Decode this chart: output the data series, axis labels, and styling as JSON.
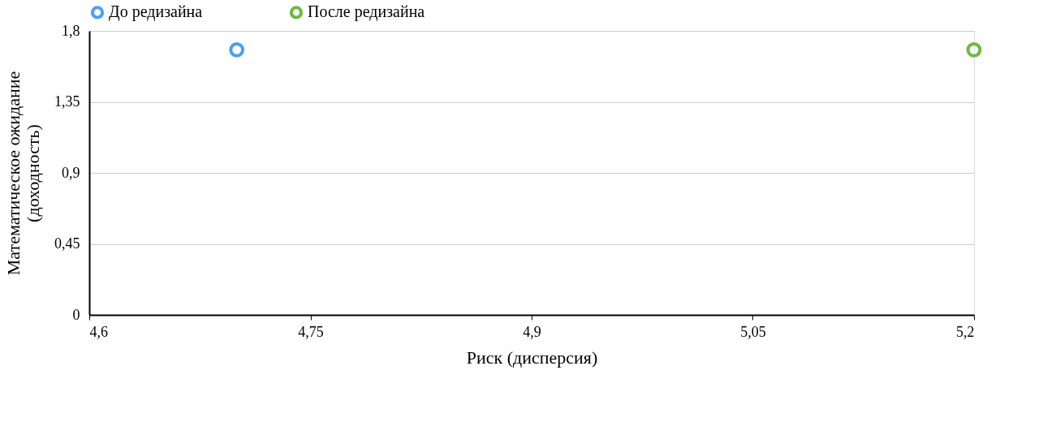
{
  "chart_data": {
    "type": "scatter",
    "xlabel": "Риск (дисперсия)",
    "ylabel": "Математическое ожидание (доходность)",
    "series": [
      {
        "name": "До редизайна",
        "color": "#4a9ff5",
        "x": [
          4.7
        ],
        "values": [
          1.68
        ]
      },
      {
        "name": "После редизайна",
        "color": "#6abb3f",
        "x": [
          5.2
        ],
        "values": [
          1.68
        ]
      }
    ],
    "xlim": [
      4.6,
      5.2
    ],
    "ylim": [
      0,
      1.8
    ],
    "xticks": [
      {
        "value": 4.6,
        "label": "4,6"
      },
      {
        "value": 4.75,
        "label": "4,75"
      },
      {
        "value": 4.9,
        "label": "4,9"
      },
      {
        "value": 5.05,
        "label": "5,05"
      },
      {
        "value": 5.2,
        "label": "5,2"
      }
    ],
    "yticks": [
      {
        "value": 0,
        "label": "0"
      },
      {
        "value": 0.45,
        "label": "0,45"
      },
      {
        "value": 0.9,
        "label": "0,9"
      },
      {
        "value": 1.35,
        "label": "1,35"
      },
      {
        "value": 1.8,
        "label": "1,8"
      }
    ],
    "grid": "y",
    "legend": "top",
    "marker": "circle"
  }
}
